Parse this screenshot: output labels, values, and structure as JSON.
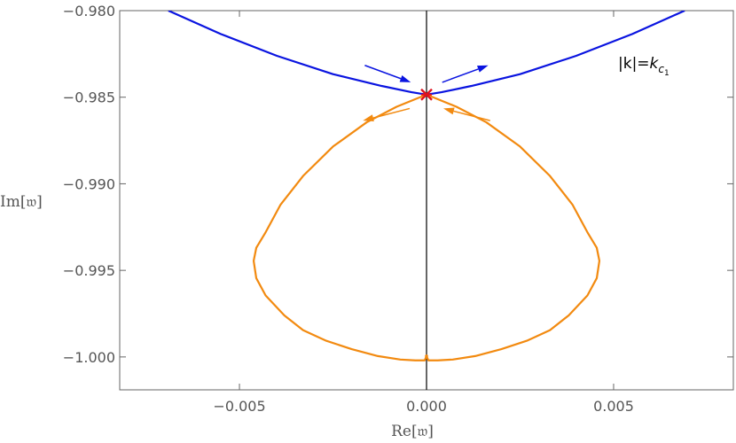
{
  "chart_data": {
    "type": "line",
    "xlabel": "Re[𝔴]",
    "ylabel": "Im[𝔴]",
    "xlim": [
      -0.0082,
      0.0082
    ],
    "ylim": [
      -1.0019,
      -0.98
    ],
    "x_ticks": [
      -0.005,
      0.0,
      0.005
    ],
    "x_tick_labels": [
      "−0.005",
      "0.000",
      "0.005"
    ],
    "y_ticks": [
      -0.98,
      -0.985,
      -0.99,
      -0.995,
      -1.0
    ],
    "y_tick_labels": [
      "−0.980",
      "−0.985",
      "−0.990",
      "−0.995",
      "−1.000"
    ],
    "grid": false,
    "annotation": {
      "prefix": "|k|=",
      "var": "k",
      "sub": "c",
      "subsub": "1"
    },
    "colors": {
      "blue": "#0a14e0",
      "orange": "#f28a10",
      "marker": "#e0101e",
      "axis": "#000000"
    },
    "vertical_line_x": 0.0,
    "crossing_point": {
      "x": 0.0,
      "y": -0.98485
    },
    "series": [
      {
        "color": "blue",
        "x": [
          -0.0069,
          -0.0055,
          -0.004,
          -0.0025,
          -0.0012,
          -0.0004,
          0.0,
          0.0004,
          0.0012,
          0.0025,
          0.004,
          0.0055,
          0.0069
        ],
        "y": [
          -0.98,
          -0.98135,
          -0.98261,
          -0.98367,
          -0.98435,
          -0.98471,
          -0.98485,
          -0.98471,
          -0.98435,
          -0.98367,
          -0.98261,
          -0.98135,
          -0.98
        ]
      },
      {
        "color": "orange",
        "x": [
          0.0,
          -0.0008,
          -0.0016,
          -0.0025,
          -0.0033,
          -0.0039,
          -0.0043,
          -0.00455,
          -0.00462,
          -0.00455,
          -0.0043,
          -0.0038,
          -0.0033,
          -0.0027,
          -0.002,
          -0.0013,
          -0.0007,
          -0.0003,
          -5e-05,
          0.0,
          5e-05,
          0.0003,
          0.0007,
          0.0013,
          0.002,
          0.0027,
          0.0033,
          0.0038,
          0.0043,
          0.00455,
          0.00462,
          0.00455,
          0.0043,
          0.0039,
          0.0033,
          0.0025,
          0.0016,
          0.0008,
          0.0
        ],
        "y": [
          -0.98485,
          -0.98555,
          -0.98645,
          -0.98785,
          -0.98955,
          -0.9912,
          -0.9928,
          -0.9937,
          -0.99445,
          -0.99545,
          -0.99645,
          -0.9976,
          -0.99845,
          -0.99905,
          -0.99955,
          -0.99995,
          -1.00015,
          -1.0002,
          -1.0002,
          -0.99995,
          -1.0002,
          -1.0002,
          -1.00015,
          -0.99995,
          -0.99955,
          -0.99905,
          -0.99845,
          -0.9976,
          -0.99645,
          -0.99545,
          -0.99445,
          -0.9937,
          -0.9928,
          -0.9912,
          -0.98955,
          -0.98785,
          -0.98645,
          -0.98555,
          -0.98485
        ]
      }
    ],
    "arrows": [
      {
        "color": "blue",
        "from": [
          -0.00165,
          -0.98316
        ],
        "to": [
          -0.00042,
          -0.98414
        ]
      },
      {
        "color": "blue",
        "from": [
          0.00042,
          -0.98414
        ],
        "to": [
          0.00165,
          -0.98316
        ]
      },
      {
        "color": "orange",
        "from": [
          -0.00045,
          -0.98565
        ],
        "to": [
          -0.0017,
          -0.98635
        ]
      },
      {
        "color": "orange",
        "from": [
          0.0017,
          -0.98635
        ],
        "to": [
          0.00045,
          -0.98565
        ]
      }
    ]
  }
}
